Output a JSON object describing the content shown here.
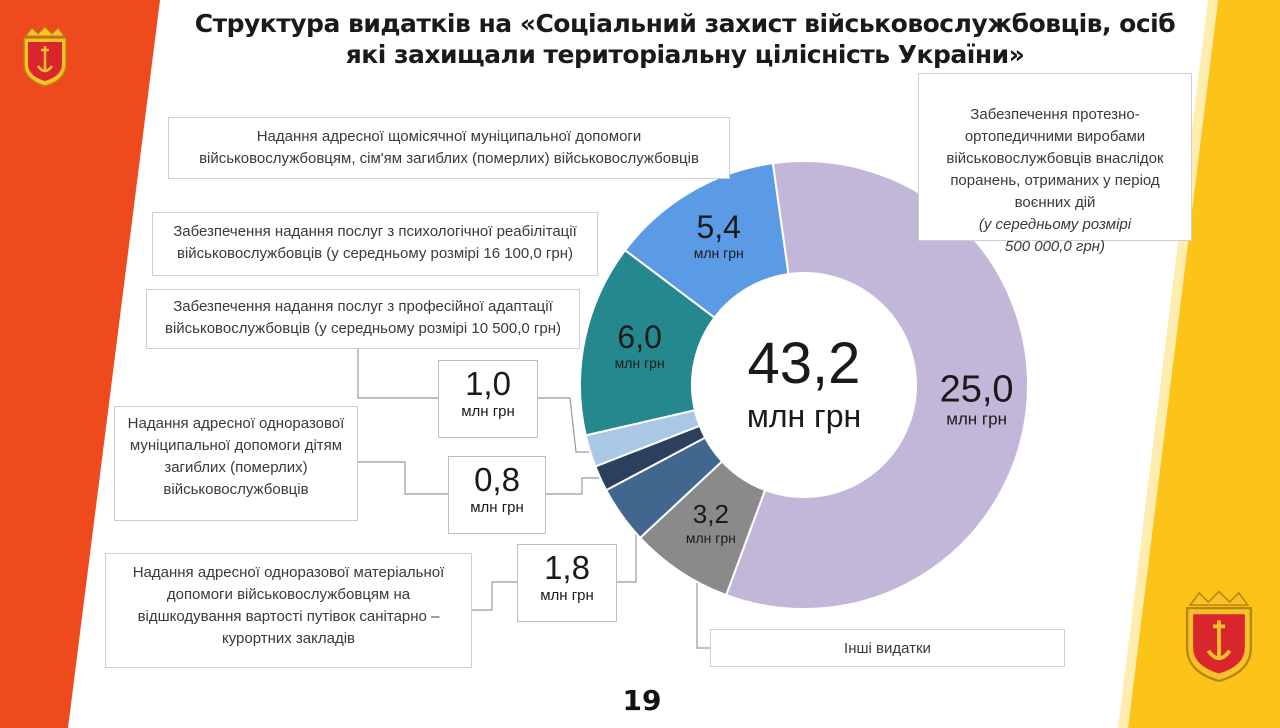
{
  "slide": {
    "title": "Структура видатків на «Соціальний захист військовослужбовців, осіб\nякі захищали територіальну цілісність України»",
    "page_number": "19",
    "colors": {
      "left_band": "#ef4a1e",
      "right_band": "#fcc419",
      "accent_line": "#f7b924"
    }
  },
  "chart_data": {
    "type": "pie",
    "subtype": "donut",
    "total_value": "43,2",
    "total_unit": "млн грн",
    "unit": "млн грн",
    "slices": [
      {
        "label": "Забезпечення протезно-ортопедичними виробами військовослужбовців внаслідок поранень, отриманих у період воєнних дій",
        "label_note": "(у середньому розмірі 500 000,0 грн)",
        "value": 25.0,
        "value_text": "25,0",
        "color": "#c2b7d9"
      },
      {
        "label": "Інші видатки",
        "value": 3.2,
        "value_text": "3,2",
        "color": "#8a8a8a"
      },
      {
        "label": "Надання адресної одноразової матеріальної допомоги військовослужбовцям на відшкодування вартості путівок санітарно – курортних закладів",
        "value": 1.8,
        "value_text": "1,8",
        "color": "#42678f"
      },
      {
        "label": "Надання адресної одноразової муніципальної допомоги дітям загиблих (померлих) військовослужбовців",
        "value": 0.8,
        "value_text": "0,8",
        "color": "#2c3f5c"
      },
      {
        "label": "Забезпечення надання послуг з професійної адаптації військовослужбовців (у середньому розмірі 10 500,0 грн)",
        "value": 1.0,
        "value_text": "1,0",
        "color": "#a9c8e6"
      },
      {
        "label": "Забезпечення надання послуг з психологічної реабілітації військовослужбовців (у середньому розмірі 16 100,0 грн)",
        "value": 6.0,
        "value_text": "6,0",
        "color": "#26888f"
      },
      {
        "label": "Надання адресної щомісячної муніципальної допомоги військовослужбовцям, сім'ям загиблих (померлих) військовослужбовців",
        "value": 5.4,
        "value_text": "5,4",
        "color": "#5b9be6"
      }
    ]
  },
  "labels": {
    "monthly": "Надання адресної щомісячної муніципальної допомоги\nвійськовослужбовцям,  сім'ям загиблих (померлих) військовослужбовців",
    "psych": "Забезпечення надання послуг  з психологічної реабілітації\nвійськовослужбовців  (у середньому розмірі  16 100,0 грн)",
    "prof": "Забезпечення надання послуг  з професійної адаптації\nвійськовослужбовців  (у середньому розмірі  10 500,0 грн)",
    "children": "Надання адресної одноразової\nмуніципальної допомоги дітям\nзагиблих (померлих)\nвійськовослужбовців",
    "sanatorium": "Надання адресної одноразової матеріальної\nдопомоги військовослужбовцям  на\nвідшкодування вартості путівок санітарно –\nкурортних закладів",
    "prosthetic": "Забезпечення протезно-\nортопедичними виробами\nвійськовослужбовців  внаслідок\nпоранень, отриманих у період\nвоєнних дій",
    "prosthetic_note": "(у середньому розмірі\n500 000,0 грн)",
    "other": "Інші видатки"
  },
  "callouts": {
    "prof_value": "1,0",
    "children_value": "0,8",
    "sanatorium_value": "1,8",
    "unit": "млн грн"
  },
  "logos": {
    "left": "odesa-coat-of-arms",
    "right": "odesa-coat-of-arms"
  }
}
